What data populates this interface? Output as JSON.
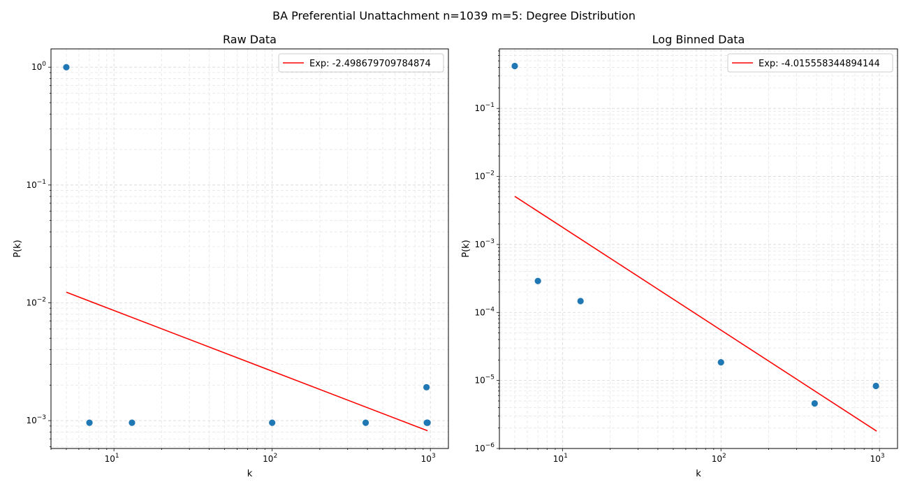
{
  "figure": {
    "suptitle": "BA Preferential Unattachment n=1039 m=5: Degree Distribution"
  },
  "chart_data": [
    {
      "type": "scatter",
      "title": "Raw Data",
      "xlabel": "k",
      "ylabel": "P(k)",
      "xscale": "log",
      "yscale": "log",
      "xlim": [
        4,
        1300
      ],
      "ylim": [
        0.00058,
        1.43
      ],
      "grid": true,
      "legend_position": "top-right",
      "x_ticks": [
        {
          "value": 10,
          "mant": "10",
          "exp": "1"
        },
        {
          "value": 100,
          "mant": "10",
          "exp": "2"
        },
        {
          "value": 1000,
          "mant": "10",
          "exp": "3"
        }
      ],
      "y_ticks": [
        {
          "value": 0.001,
          "mant": "10",
          "exp": "−3"
        },
        {
          "value": 0.01,
          "mant": "10",
          "exp": "−2"
        },
        {
          "value": 0.1,
          "mant": "10",
          "exp": "−1"
        },
        {
          "value": 1,
          "mant": "10",
          "exp": "0"
        }
      ],
      "points": {
        "color": "#1f77b4",
        "x": [
          5,
          7,
          13,
          100,
          390,
          945,
          950,
          960
        ],
        "y": [
          1.0,
          0.00096,
          0.00096,
          0.00096,
          0.00096,
          0.00192,
          0.00096,
          0.00096
        ]
      },
      "fit": {
        "label": "Exp: -2.498679709784874",
        "color": "#ff0000",
        "x": [
          5,
          960
        ],
        "y": [
          0.0123,
          0.00082
        ]
      }
    },
    {
      "type": "scatter",
      "title": "Log Binned Data",
      "xlabel": "k",
      "ylabel": "P(k)",
      "xscale": "log",
      "yscale": "log",
      "xlim": [
        4,
        1300
      ],
      "ylim": [
        1e-06,
        0.75
      ],
      "grid": true,
      "legend_position": "top-right",
      "x_ticks": [
        {
          "value": 10,
          "mant": "10",
          "exp": "1"
        },
        {
          "value": 100,
          "mant": "10",
          "exp": "2"
        },
        {
          "value": 1000,
          "mant": "10",
          "exp": "3"
        }
      ],
      "y_ticks": [
        {
          "value": 1e-06,
          "mant": "10",
          "exp": "−6"
        },
        {
          "value": 1e-05,
          "mant": "10",
          "exp": "−5"
        },
        {
          "value": 0.0001,
          "mant": "10",
          "exp": "−4"
        },
        {
          "value": 0.001,
          "mant": "10",
          "exp": "−3"
        },
        {
          "value": 0.01,
          "mant": "10",
          "exp": "−2"
        },
        {
          "value": 0.1,
          "mant": "10",
          "exp": "−1"
        }
      ],
      "points": {
        "color": "#1f77b4",
        "x": [
          5,
          7,
          13,
          100,
          390,
          950
        ],
        "y": [
          0.42,
          0.00029,
          0.000147,
          1.85e-05,
          4.6e-06,
          8.3e-06
        ]
      },
      "fit": {
        "label": "Exp: -4.015558344894144",
        "color": "#ff0000",
        "x": [
          5,
          960
        ],
        "y": [
          0.0051,
          1.8e-06
        ]
      }
    }
  ]
}
